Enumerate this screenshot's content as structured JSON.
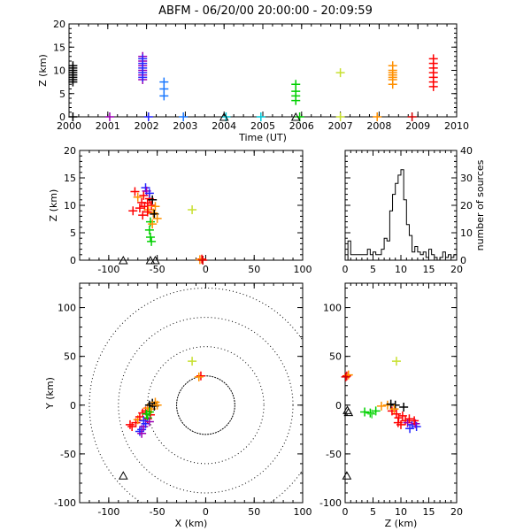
{
  "title": "ABFM - 06/20/00 20:00:00 - 20:09:59",
  "colors": {
    "black": "#000000",
    "purple": "#9b00b4",
    "blue": "#2424ff",
    "blue2": "#1a78ff",
    "cyan": "#00c8d8",
    "green": "#00d000",
    "green2": "#40e040",
    "yellow": "#c8e030",
    "orange": "#ff9000",
    "red": "#ff0000",
    "darkred": "#d00000"
  },
  "chart_data": [
    {
      "id": "time-height",
      "type": "scatter",
      "xlabel": "Time (UT)",
      "ylabel": "Z (km)",
      "xlim": [
        2000,
        2010
      ],
      "ylim": [
        0,
        20
      ],
      "xticks": [
        "2000",
        "2001",
        "2002",
        "2003",
        "2004",
        "2005",
        "2006",
        "2007",
        "2008",
        "2009",
        "2010"
      ],
      "yticks": [
        "0",
        "5",
        "10",
        "15",
        "20"
      ],
      "groups": [
        {
          "color": "black",
          "x": 2000.1,
          "z": [
            7.5,
            8,
            8.5,
            9,
            9.5,
            10,
            10.5,
            11
          ]
        },
        {
          "color": "purple",
          "x": 2001.9,
          "z": [
            8,
            9,
            10,
            11,
            12,
            13
          ]
        },
        {
          "color": "blue",
          "x": 2001.9,
          "z": [
            8.5,
            9.5,
            10.5,
            11.5,
            12.5
          ]
        },
        {
          "color": "blue2",
          "x": 2002.45,
          "z": [
            4.5,
            6,
            7.5
          ]
        },
        {
          "color": "green",
          "x": 2005.85,
          "z": [
            3.5,
            4.5,
            5.5,
            7
          ]
        },
        {
          "color": "yellow",
          "x": 2007.0,
          "z": [
            9.5
          ]
        },
        {
          "color": "orange",
          "x": 2008.35,
          "z": [
            7,
            8,
            8.5,
            9,
            9.5,
            10,
            11
          ]
        },
        {
          "color": "red",
          "x": 2009.4,
          "z": [
            6.5,
            7.5,
            8.5,
            9.5,
            10.5,
            11.5,
            12.5
          ]
        }
      ],
      "ground": [
        {
          "color": "black",
          "x": 2000.1
        },
        {
          "color": "purple",
          "x": 2001.05
        },
        {
          "color": "blue",
          "x": 2002.05
        },
        {
          "color": "blue2",
          "x": 2002.95
        },
        {
          "color": "cyan",
          "x": 2004.05
        },
        {
          "color": "cyan",
          "x": 2004.95
        },
        {
          "color": "green",
          "x": 2005.95
        },
        {
          "color": "yellow",
          "x": 2007.0
        },
        {
          "color": "orange",
          "x": 2007.95
        },
        {
          "color": "darkred",
          "x": 2008.85
        }
      ],
      "stations": [
        2004.0,
        2005.85
      ]
    },
    {
      "id": "x-height",
      "type": "scatter",
      "ylabel": "Z (km)",
      "xlim": [
        -130,
        100
      ],
      "ylim": [
        0,
        20
      ],
      "xticks": [
        "-100",
        "-50",
        "0",
        "50",
        "100"
      ],
      "yticks": [
        "0",
        "5",
        "10",
        "15",
        "20"
      ],
      "points": [
        {
          "color": "red",
          "x": -73,
          "z": 12.5
        },
        {
          "color": "orange",
          "x": -70,
          "z": 11.5
        },
        {
          "color": "red",
          "x": -66,
          "z": 10.5
        },
        {
          "color": "red",
          "x": -64,
          "z": 11.8
        },
        {
          "color": "blue",
          "x": -62,
          "z": 13.2
        },
        {
          "color": "purple",
          "x": -61,
          "z": 12.6
        },
        {
          "color": "red",
          "x": -63,
          "z": 9.8
        },
        {
          "color": "red",
          "x": -60,
          "z": 10.4
        },
        {
          "color": "orange",
          "x": -59,
          "z": 9.2
        },
        {
          "color": "red",
          "x": -58,
          "z": 11.2
        },
        {
          "color": "blue",
          "x": -58,
          "z": 12.2
        },
        {
          "color": "black",
          "x": -55,
          "z": 11.0
        },
        {
          "color": "red",
          "x": -56,
          "z": 10.0
        },
        {
          "color": "orange",
          "x": -54,
          "z": 8.6
        },
        {
          "color": "red",
          "x": -60,
          "z": 8.8
        },
        {
          "color": "red",
          "x": -75,
          "z": 9.0
        },
        {
          "color": "red",
          "x": -68,
          "z": 9.5
        },
        {
          "color": "orange",
          "x": -52,
          "z": 9.8
        },
        {
          "color": "black",
          "x": -53,
          "z": 8.4
        },
        {
          "color": "orange",
          "x": -50,
          "z": 7.6
        },
        {
          "color": "green",
          "x": -57,
          "z": 7.0
        },
        {
          "color": "green",
          "x": -58,
          "z": 5.5
        },
        {
          "color": "green",
          "x": -57,
          "z": 4.2
        },
        {
          "color": "green",
          "x": -56,
          "z": 3.4
        },
        {
          "color": "orange",
          "x": -55,
          "z": 6.6
        },
        {
          "color": "red",
          "x": -65,
          "z": 8.2
        },
        {
          "color": "yellow",
          "x": -14,
          "z": 9.2
        },
        {
          "color": "red",
          "x": -4,
          "z": 0.2
        },
        {
          "color": "orange",
          "x": -6,
          "z": 0.1
        },
        {
          "color": "darkred",
          "x": -3,
          "z": 0.0
        }
      ],
      "stations": [
        -85,
        -57,
        -52
      ]
    },
    {
      "id": "height-histogram",
      "type": "bar",
      "ylabel": "number of sources",
      "xlim": [
        0,
        20
      ],
      "ylim": [
        0,
        40
      ],
      "xticks": [
        "0",
        "5",
        "10",
        "15",
        "20"
      ],
      "yticks": [
        "0",
        "10",
        "20",
        "30",
        "40"
      ],
      "bin_width": 0.5,
      "values": [
        0,
        7,
        2,
        2,
        2,
        2,
        2,
        2,
        4,
        2,
        3,
        2,
        2,
        4,
        8,
        7,
        18,
        24,
        28,
        31,
        33,
        22,
        13,
        9,
        3,
        5,
        3,
        2,
        3,
        1,
        4,
        2,
        1,
        0,
        1,
        3,
        1,
        2,
        1,
        2
      ]
    },
    {
      "id": "plan-view",
      "type": "scatter",
      "xlabel": "X (km)",
      "ylabel": "Y (km)",
      "xlim": [
        -130,
        100
      ],
      "ylim": [
        -100,
        125
      ],
      "xticks": [
        "-100",
        "-50",
        "0",
        "50",
        "100"
      ],
      "yticks": [
        "-100",
        "-50",
        "0",
        "50",
        "100"
      ],
      "range_rings_km": [
        30,
        60,
        90,
        120
      ],
      "points": [
        {
          "color": "red",
          "x": -76,
          "y": -22
        },
        {
          "color": "red",
          "x": -72,
          "y": -18
        },
        {
          "color": "orange",
          "x": -70,
          "y": -15
        },
        {
          "color": "red",
          "x": -68,
          "y": -12
        },
        {
          "color": "blue",
          "x": -66,
          "y": -25
        },
        {
          "color": "purple",
          "x": -64,
          "y": -22
        },
        {
          "color": "blue",
          "x": -62,
          "y": -19
        },
        {
          "color": "red",
          "x": -65,
          "y": -8
        },
        {
          "color": "red",
          "x": -62,
          "y": -6
        },
        {
          "color": "orange",
          "x": -60,
          "y": -3
        },
        {
          "color": "black",
          "x": -58,
          "y": 0
        },
        {
          "color": "black",
          "x": -55,
          "y": 2
        },
        {
          "color": "red",
          "x": -57,
          "y": -10
        },
        {
          "color": "red",
          "x": -60,
          "y": -14
        },
        {
          "color": "orange",
          "x": -56,
          "y": -4
        },
        {
          "color": "green",
          "x": -58,
          "y": -7
        },
        {
          "color": "green",
          "x": -61,
          "y": -9
        },
        {
          "color": "green",
          "x": -60,
          "y": -13
        },
        {
          "color": "blue",
          "x": -64,
          "y": -16
        },
        {
          "color": "purple",
          "x": -58,
          "y": -17
        },
        {
          "color": "orange",
          "x": -52,
          "y": 3
        },
        {
          "color": "black",
          "x": -53,
          "y": -1
        },
        {
          "color": "orange",
          "x": -50,
          "y": 0
        },
        {
          "color": "red",
          "x": -78,
          "y": -20
        },
        {
          "color": "blue",
          "x": -68,
          "y": -27
        },
        {
          "color": "purple",
          "x": -66,
          "y": -29
        },
        {
          "color": "yellow",
          "x": -14,
          "y": 45
        },
        {
          "color": "red",
          "x": -5,
          "y": 30
        },
        {
          "color": "orange",
          "x": -7,
          "y": 29
        }
      ],
      "stations": [
        {
          "x": -85,
          "y": -73
        }
      ]
    },
    {
      "id": "z-y",
      "type": "scatter",
      "xlabel": "Z (km)",
      "xlim": [
        0,
        20
      ],
      "ylim": [
        -100,
        125
      ],
      "xticks": [
        "0",
        "5",
        "10",
        "15",
        "20"
      ],
      "yticks": [
        "-100",
        "-50",
        "0",
        "50",
        "100"
      ],
      "points": [
        {
          "color": "red",
          "x": 0.3,
          "y": 30
        },
        {
          "color": "orange",
          "x": 0.6,
          "y": 31
        },
        {
          "color": "darkred",
          "x": 0.1,
          "y": 29
        },
        {
          "color": "green",
          "x": 3.5,
          "y": -7
        },
        {
          "color": "green",
          "x": 4.5,
          "y": -8
        },
        {
          "color": "green",
          "x": 5.5,
          "y": -6
        },
        {
          "color": "green2",
          "x": 4.8,
          "y": -9
        },
        {
          "color": "orange",
          "x": 6.5,
          "y": -1
        },
        {
          "color": "orange",
          "x": 7.6,
          "y": 0
        },
        {
          "color": "black",
          "x": 8.2,
          "y": 1
        },
        {
          "color": "black",
          "x": 9.0,
          "y": 0
        },
        {
          "color": "red",
          "x": 8.4,
          "y": -6
        },
        {
          "color": "red",
          "x": 9.2,
          "y": -9
        },
        {
          "color": "red",
          "x": 9.6,
          "y": -13
        },
        {
          "color": "red",
          "x": 10.3,
          "y": -11
        },
        {
          "color": "red",
          "x": 10.8,
          "y": -16
        },
        {
          "color": "purple",
          "x": 11.2,
          "y": -18
        },
        {
          "color": "blue",
          "x": 12.0,
          "y": -20
        },
        {
          "color": "blue",
          "x": 12.8,
          "y": -22
        },
        {
          "color": "blue",
          "x": 11.6,
          "y": -24
        },
        {
          "color": "purple",
          "x": 12.6,
          "y": -19
        },
        {
          "color": "red",
          "x": 10.0,
          "y": -20
        },
        {
          "color": "orange",
          "x": 8.8,
          "y": -4
        },
        {
          "color": "red",
          "x": 11.5,
          "y": -14
        },
        {
          "color": "black",
          "x": 10.5,
          "y": -2
        },
        {
          "color": "red",
          "x": 9.5,
          "y": -18
        },
        {
          "color": "red",
          "x": 12.4,
          "y": -16
        },
        {
          "color": "yellow",
          "x": 9.2,
          "y": 45
        }
      ],
      "stations": [
        {
          "x": 0.3,
          "y": -73
        },
        {
          "x": 0.4,
          "y": -6
        },
        {
          "x": 0.6,
          "y": -8
        }
      ]
    }
  ]
}
